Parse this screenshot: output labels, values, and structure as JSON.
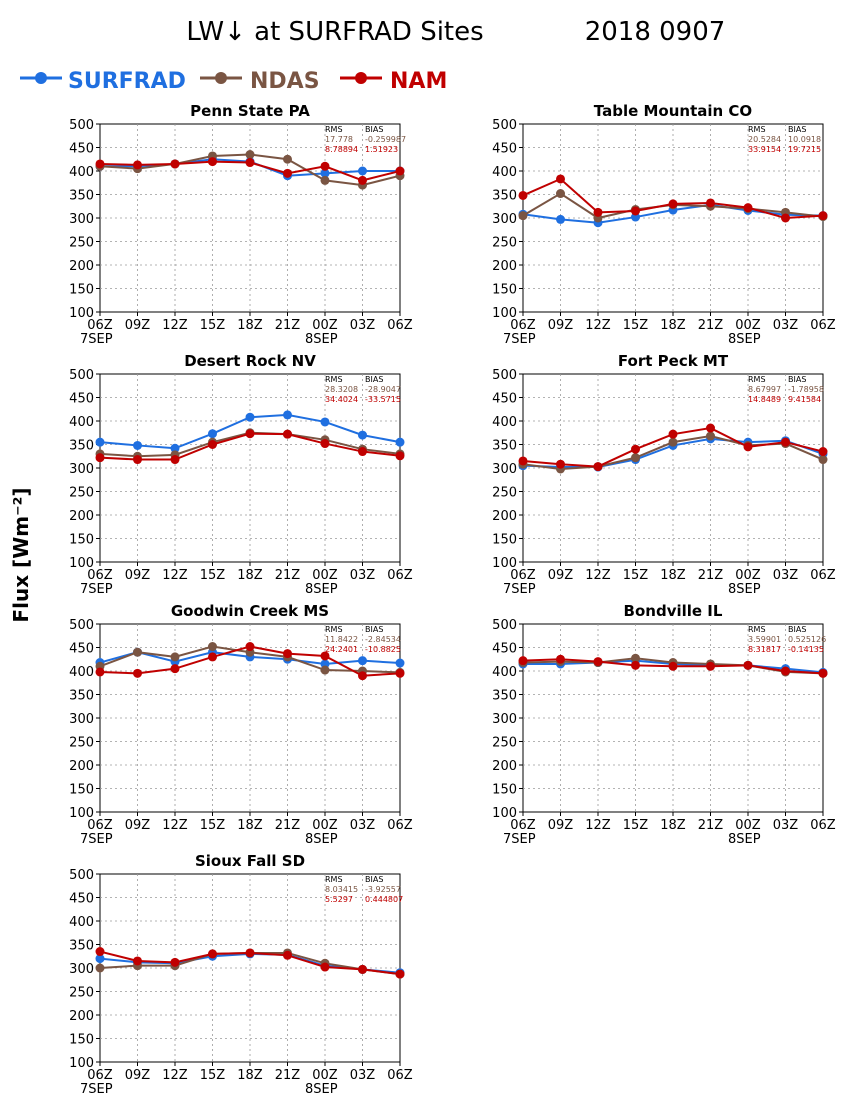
{
  "header": {
    "title": "LW↓ at SURFRAD Sites",
    "date": "2018 0907"
  },
  "ylabel": "Flux [Wm⁻²]",
  "legend": [
    {
      "name": "SURFRAD",
      "color": "#1f6fe0"
    },
    {
      "name": "NDAS",
      "color": "#7a5543"
    },
    {
      "name": "NAM",
      "color": "#c00000"
    }
  ],
  "stats_headers": {
    "rms": "RMS",
    "bias": "BIAS"
  },
  "date_labels": [
    "7SEP",
    "8SEP"
  ],
  "chart_data": [
    {
      "type": "line",
      "title": "Penn State PA",
      "categories": [
        "06Z",
        "09Z",
        "12Z",
        "15Z",
        "18Z",
        "21Z",
        "00Z",
        "03Z",
        "06Z"
      ],
      "ylim": [
        100,
        500
      ],
      "yticks": [
        100,
        150,
        200,
        250,
        300,
        350,
        400,
        450,
        500
      ],
      "grid": true,
      "series": [
        {
          "name": "SURFRAD",
          "values": [
            410,
            410,
            415,
            425,
            420,
            390,
            395,
            400,
            400
          ]
        },
        {
          "name": "NDAS",
          "values": [
            410,
            405,
            415,
            432,
            435,
            425,
            380,
            370,
            390
          ]
        },
        {
          "name": "NAM",
          "values": [
            415,
            413,
            415,
            420,
            418,
            395,
            410,
            380,
            400
          ]
        }
      ],
      "stats": {
        "ndas_rms": "17.778",
        "ndas_bias": "-0.259987",
        "nam_rms": "8.78894",
        "nam_bias": "1.51923"
      }
    },
    {
      "type": "line",
      "title": "Table Mountain CO",
      "categories": [
        "06Z",
        "09Z",
        "12Z",
        "15Z",
        "18Z",
        "21Z",
        "00Z",
        "03Z",
        "06Z"
      ],
      "ylim": [
        100,
        500
      ],
      "yticks": [
        100,
        150,
        200,
        250,
        300,
        350,
        400,
        450,
        500
      ],
      "grid": true,
      "series": [
        {
          "name": "SURFRAD",
          "values": [
            308,
            297,
            290,
            302,
            317,
            328,
            316,
            307,
            305
          ]
        },
        {
          "name": "NDAS",
          "values": [
            305,
            352,
            300,
            318,
            328,
            325,
            320,
            312,
            303
          ]
        },
        {
          "name": "NAM",
          "values": [
            348,
            383,
            312,
            315,
            330,
            332,
            322,
            300,
            305
          ]
        }
      ],
      "stats": {
        "ndas_rms": "20.5284",
        "ndas_bias": "10.0918",
        "nam_rms": "33.9154",
        "nam_bias": "19.7215"
      }
    },
    {
      "type": "line",
      "title": "Desert Rock NV",
      "categories": [
        "06Z",
        "09Z",
        "12Z",
        "15Z",
        "18Z",
        "21Z",
        "00Z",
        "03Z",
        "06Z"
      ],
      "ylim": [
        100,
        500
      ],
      "yticks": [
        100,
        150,
        200,
        250,
        300,
        350,
        400,
        450,
        500
      ],
      "grid": true,
      "series": [
        {
          "name": "SURFRAD",
          "values": [
            355,
            348,
            342,
            373,
            408,
            413,
            398,
            370,
            355
          ]
        },
        {
          "name": "NDAS",
          "values": [
            330,
            325,
            328,
            355,
            375,
            372,
            360,
            340,
            330
          ]
        },
        {
          "name": "NAM",
          "values": [
            322,
            318,
            318,
            350,
            373,
            372,
            352,
            335,
            326
          ]
        }
      ],
      "stats": {
        "ndas_rms": "28.3208",
        "ndas_bias": "-28.9047",
        "nam_rms": "34.4024",
        "nam_bias": "-33.5715"
      }
    },
    {
      "type": "line",
      "title": "Fort Peck MT",
      "categories": [
        "06Z",
        "09Z",
        "12Z",
        "15Z",
        "18Z",
        "21Z",
        "00Z",
        "03Z",
        "06Z"
      ],
      "ylim": [
        100,
        500
      ],
      "yticks": [
        100,
        150,
        200,
        250,
        300,
        350,
        400,
        450,
        500
      ],
      "grid": true,
      "series": [
        {
          "name": "SURFRAD",
          "values": [
            305,
            302,
            302,
            318,
            348,
            362,
            355,
            358,
            330
          ]
        },
        {
          "name": "NDAS",
          "values": [
            308,
            298,
            303,
            322,
            355,
            368,
            348,
            352,
            318
          ]
        },
        {
          "name": "NAM",
          "values": [
            315,
            308,
            303,
            340,
            372,
            385,
            345,
            355,
            335
          ]
        }
      ],
      "stats": {
        "ndas_rms": "8.67997",
        "ndas_bias": "-1.78958",
        "nam_rms": "14.8489",
        "nam_bias": "9.41584"
      }
    },
    {
      "type": "line",
      "title": "Goodwin Creek MS",
      "categories": [
        "06Z",
        "09Z",
        "12Z",
        "15Z",
        "18Z",
        "21Z",
        "00Z",
        "03Z",
        "06Z"
      ],
      "ylim": [
        100,
        500
      ],
      "yticks": [
        100,
        150,
        200,
        250,
        300,
        350,
        400,
        450,
        500
      ],
      "grid": true,
      "series": [
        {
          "name": "SURFRAD",
          "values": [
            418,
            440,
            420,
            440,
            430,
            425,
            415,
            422,
            417
          ]
        },
        {
          "name": "NDAS",
          "values": [
            410,
            440,
            430,
            452,
            440,
            430,
            402,
            400,
            397
          ]
        },
        {
          "name": "NAM",
          "values": [
            398,
            395,
            405,
            430,
            452,
            437,
            432,
            390,
            395
          ]
        }
      ],
      "stats": {
        "ndas_rms": "11.8422",
        "ndas_bias": "-2.84534",
        "nam_rms": "24.2401",
        "nam_bias": "-10.8825"
      }
    },
    {
      "type": "line",
      "title": "Bondville IL",
      "categories": [
        "06Z",
        "09Z",
        "12Z",
        "15Z",
        "18Z",
        "21Z",
        "00Z",
        "03Z",
        "06Z"
      ],
      "ylim": [
        100,
        500
      ],
      "yticks": [
        100,
        150,
        200,
        250,
        300,
        350,
        400,
        450,
        500
      ],
      "grid": true,
      "series": [
        {
          "name": "SURFRAD",
          "values": [
            415,
            415,
            418,
            422,
            415,
            412,
            412,
            405,
            397
          ]
        },
        {
          "name": "NDAS",
          "values": [
            418,
            420,
            418,
            427,
            418,
            415,
            412,
            398,
            395
          ]
        },
        {
          "name": "NAM",
          "values": [
            422,
            425,
            420,
            412,
            410,
            410,
            412,
            400,
            395
          ]
        }
      ],
      "stats": {
        "ndas_rms": "3.59901",
        "ndas_bias": "0.525126",
        "nam_rms": "8.31817",
        "nam_bias": "-0.14135"
      }
    },
    {
      "type": "line",
      "title": "Sioux Fall SD",
      "categories": [
        "06Z",
        "09Z",
        "12Z",
        "15Z",
        "18Z",
        "21Z",
        "00Z",
        "03Z",
        "06Z"
      ],
      "ylim": [
        100,
        500
      ],
      "yticks": [
        100,
        150,
        200,
        250,
        300,
        350,
        400,
        450,
        500
      ],
      "grid": true,
      "series": [
        {
          "name": "SURFRAD",
          "values": [
            320,
            312,
            310,
            325,
            330,
            328,
            305,
            297,
            290
          ]
        },
        {
          "name": "NDAS",
          "values": [
            300,
            305,
            305,
            330,
            332,
            332,
            310,
            297,
            287
          ]
        },
        {
          "name": "NAM",
          "values": [
            335,
            315,
            312,
            330,
            332,
            327,
            302,
            297,
            287
          ]
        }
      ],
      "stats": {
        "ndas_rms": "8.03415",
        "ndas_bias": "-3.92557",
        "nam_rms": "5.5297",
        "nam_bias": "0.444807"
      }
    }
  ]
}
